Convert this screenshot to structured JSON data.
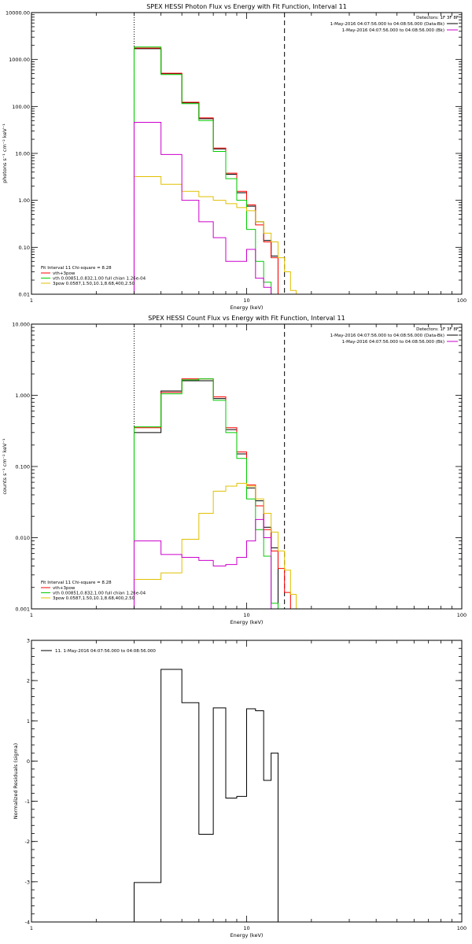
{
  "chart_data": [
    {
      "type": "line",
      "scale": {
        "x": "log",
        "y": "log"
      },
      "title": "SPEX HESSI Photon Flux vs Energy with Fit Function, Interval 11",
      "xlabel": "Energy (keV)",
      "ylabel": "photons s⁻¹ cm⁻² keV⁻¹",
      "xlim": [
        1,
        100
      ],
      "ylim": [
        0.01,
        10000
      ],
      "x_ticks": [
        {
          "v": 1,
          "label": "1"
        },
        {
          "v": 10,
          "label": "10"
        },
        {
          "v": 100,
          "label": "100"
        }
      ],
      "y_ticks": [
        {
          "v": 0.01,
          "label": "0.01"
        },
        {
          "v": 0.1,
          "label": "0.10"
        },
        {
          "v": 1,
          "label": "1.00"
        },
        {
          "v": 10,
          "label": "10.00"
        },
        {
          "v": 100,
          "label": "100.00"
        },
        {
          "v": 1000,
          "label": "1000.00"
        },
        {
          "v": 10000,
          "label": "10000.00"
        }
      ],
      "vlines": [
        {
          "x": 3,
          "style": "dotted"
        },
        {
          "x": 15,
          "style": "dashed"
        }
      ],
      "bin_edges": [
        3,
        4,
        5,
        6,
        7,
        8,
        9,
        10,
        11,
        12,
        13,
        14,
        15,
        16,
        17,
        18
      ],
      "series": [
        {
          "name": "",
          "color": "#000000",
          "values": [
            1700,
            500,
            120,
            55,
            12.5,
            3.6,
            1.45,
            0.75,
            0.35,
            0.14,
            0.065,
            null,
            null,
            null,
            null
          ]
        },
        {
          "name": "vth+3pow",
          "color": "#ff0000",
          "values": [
            1750,
            510,
            123,
            57,
            13,
            3.8,
            1.55,
            0.8,
            0.3,
            0.13,
            0.06,
            0.001,
            null,
            null,
            null
          ]
        },
        {
          "name": "vth 0.00851,0.832,1.00  full chian 1.26e-04",
          "color": "#00cc00",
          "values": [
            1850,
            480,
            115,
            50,
            11,
            2.9,
            1.0,
            0.24,
            0.05,
            0.018,
            0.008,
            null,
            null,
            null,
            null
          ]
        },
        {
          "name": "3pow 0.0587,1.50,10.1,8.68,400,2.50",
          "color": "#e0c000",
          "values": [
            3.2,
            2.2,
            1.55,
            1.2,
            1.0,
            0.85,
            0.7,
            0.6,
            0.35,
            0.2,
            0.13,
            0.06,
            0.03,
            0.012,
            0.004
          ]
        },
        {
          "name": "",
          "color": "#cc00cc",
          "values": [
            46,
            9.5,
            1.0,
            0.35,
            0.16,
            0.05,
            0.05,
            0.09,
            0.022,
            0.014,
            null,
            null,
            null,
            null,
            null
          ]
        }
      ],
      "info": {
        "detectors": "Detectors: 1F 3F 8F",
        "rows": [
          {
            "text": "1-May-2016 04:07:56.000 to 04:08:56.000 (Data-Bk)",
            "color": "#000000"
          },
          {
            "text": "1-May-2016 04:07:56.000 to 04:08:56.000 (Bk)",
            "color": "#cc00cc"
          }
        ]
      },
      "legend": {
        "header": "Fit Interval 11   Chi-square = 8.28",
        "placement": "bottom-left"
      }
    },
    {
      "type": "line",
      "scale": {
        "x": "log",
        "y": "log"
      },
      "title": "SPEX HESSI Count Flux vs Energy with Fit Function, Interval 11",
      "xlabel": "Energy (keV)",
      "ylabel": "counts s⁻¹ cm⁻² keV⁻¹",
      "xlim": [
        1,
        100
      ],
      "ylim": [
        0.001,
        10
      ],
      "x_ticks": [
        {
          "v": 1,
          "label": "1"
        },
        {
          "v": 10,
          "label": "10"
        },
        {
          "v": 100,
          "label": "100"
        }
      ],
      "y_ticks": [
        {
          "v": 0.001,
          "label": "0.001"
        },
        {
          "v": 0.01,
          "label": "0.010"
        },
        {
          "v": 0.1,
          "label": "0.100"
        },
        {
          "v": 1,
          "label": "1.000"
        },
        {
          "v": 10,
          "label": "10.000"
        }
      ],
      "vlines": [
        {
          "x": 3,
          "style": "dotted"
        },
        {
          "x": 15,
          "style": "dashed"
        }
      ],
      "bin_edges": [
        3,
        4,
        5,
        6,
        7,
        8,
        9,
        10,
        11,
        12,
        13,
        14,
        15,
        16,
        17,
        18,
        19,
        20
      ],
      "series": [
        {
          "name": "",
          "color": "#000000",
          "values": [
            0.3,
            1.15,
            1.6,
            1.6,
            0.9,
            0.33,
            0.15,
            0.05,
            0.033,
            0.014,
            0.0072,
            null,
            null,
            null,
            null,
            null,
            null
          ]
        },
        {
          "name": "vth+3pow",
          "color": "#ff0000",
          "values": [
            0.35,
            1.1,
            1.7,
            1.7,
            0.95,
            0.35,
            0.16,
            0.055,
            0.028,
            0.013,
            0.0065,
            0.0037,
            0.0017,
            0.001,
            null,
            null,
            null
          ]
        },
        {
          "name": "vth 0.00851,0.832,1.00  full chian 1.26e-04",
          "color": "#00cc00",
          "values": [
            0.36,
            1.05,
            1.65,
            1.7,
            0.85,
            0.3,
            0.13,
            0.035,
            0.013,
            0.0055,
            0.0012,
            null,
            null,
            null,
            null,
            null,
            null
          ]
        },
        {
          "name": "3pow 0.0587,1.50,10.1,8.68,400,2.50",
          "color": "#e0c000",
          "values": [
            0.0026,
            0.0032,
            0.0095,
            0.022,
            0.045,
            0.053,
            0.058,
            0.053,
            0.035,
            0.022,
            0.012,
            0.0065,
            0.0035,
            0.0016,
            0.0009,
            null,
            null
          ]
        },
        {
          "name": "",
          "color": "#cc00cc",
          "values": [
            0.009,
            0.0058,
            0.0053,
            0.0048,
            0.004,
            0.0042,
            0.0053,
            0.009,
            0.018,
            0.01,
            null,
            null,
            null,
            null,
            null,
            null,
            null
          ]
        }
      ],
      "info": {
        "detectors": "Detectors: 1F 3F 8F",
        "rows": [
          {
            "text": "1-May-2016 04:07:56.000 to 04:08:56.000 (Data-Bk)",
            "color": "#000000"
          },
          {
            "text": "1-May-2016 04:07:56.000 to 04:08:56.000 (Bk)",
            "color": "#cc00cc"
          }
        ]
      },
      "legend": {
        "header": "Fit Interval 11   Chi-square = 8.28",
        "placement": "bottom-left"
      }
    },
    {
      "type": "line",
      "scale": {
        "x": "log",
        "y": "linear"
      },
      "title": "",
      "xlabel": "Energy (keV)",
      "ylabel": "Normalized Residuals (sigma)",
      "xlim": [
        1,
        100
      ],
      "ylim": [
        -4,
        3
      ],
      "x_ticks": [
        {
          "v": 1,
          "label": "1"
        },
        {
          "v": 10,
          "label": "10"
        },
        {
          "v": 100,
          "label": "100"
        }
      ],
      "y_ticks": [
        {
          "v": -4,
          "label": "-4"
        },
        {
          "v": -3,
          "label": "-3"
        },
        {
          "v": -2,
          "label": "-2"
        },
        {
          "v": -1,
          "label": "-1"
        },
        {
          "v": 0,
          "label": "0"
        },
        {
          "v": 1,
          "label": "1"
        },
        {
          "v": 2,
          "label": "2"
        },
        {
          "v": 3,
          "label": "3"
        }
      ],
      "bin_edges": [
        3,
        4,
        5,
        6,
        7,
        8,
        9,
        10,
        11,
        12,
        13,
        14,
        15
      ],
      "series": [
        {
          "name": "11.  1-May-2016 04:07:56.000 to 04:08:56.000",
          "color": "#000000",
          "values": [
            -3.02,
            2.28,
            1.45,
            -1.82,
            1.32,
            -0.92,
            -0.88,
            1.3,
            1.25,
            -0.48,
            0.2
          ]
        }
      ],
      "legend": {
        "placement": "top-left"
      }
    }
  ]
}
